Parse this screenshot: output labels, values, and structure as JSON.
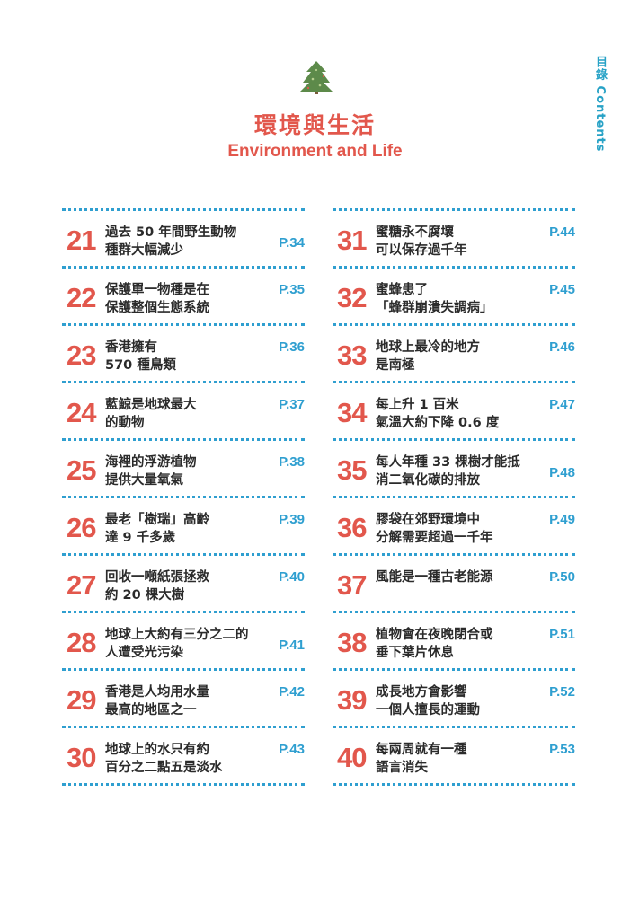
{
  "side_tab": "目錄 Contents",
  "icon": "pine-tree-icon",
  "title_zh": "環境與生活",
  "title_en": "Environment and Life",
  "colors": {
    "accent_red": "#e2574c",
    "accent_blue": "#2f9fd0",
    "tree_green": "#5d8a4a"
  },
  "left": [
    {
      "num": "21",
      "lines": [
        "過去 50 年間野生動物",
        "種群大幅減少"
      ],
      "page": "P.34"
    },
    {
      "num": "22",
      "lines": [
        "保護單一物種是在",
        "保護整個生態系統"
      ],
      "page": "P.35"
    },
    {
      "num": "23",
      "lines": [
        "香港擁有",
        "570 種鳥類"
      ],
      "page": "P.36"
    },
    {
      "num": "24",
      "lines": [
        "藍鯨是地球最大",
        "的動物"
      ],
      "page": "P.37"
    },
    {
      "num": "25",
      "lines": [
        "海裡的浮游植物",
        "提供大量氧氣"
      ],
      "page": "P.38"
    },
    {
      "num": "26",
      "lines": [
        "最老「樹瑞」高齡",
        "達 9 千多歲"
      ],
      "page": "P.39"
    },
    {
      "num": "27",
      "lines": [
        "回收一噸紙張拯救",
        "約 20 棵大樹"
      ],
      "page": "P.40"
    },
    {
      "num": "28",
      "lines": [
        "地球上大約有三分之二的",
        "人遭受光污染"
      ],
      "page": "P.41"
    },
    {
      "num": "29",
      "lines": [
        "香港是人均用水量",
        "最高的地區之一"
      ],
      "page": "P.42"
    },
    {
      "num": "30",
      "lines": [
        "地球上的水只有約",
        "百分之二點五是淡水"
      ],
      "page": "P.43"
    }
  ],
  "right": [
    {
      "num": "31",
      "lines": [
        "蜜糖永不腐壞",
        "可以保存過千年"
      ],
      "page": "P.44"
    },
    {
      "num": "32",
      "lines": [
        "蜜蜂患了",
        "「蜂群崩潰失調病」"
      ],
      "page": "P.45"
    },
    {
      "num": "33",
      "lines": [
        "地球上最冷的地方",
        "是南極"
      ],
      "page": "P.46"
    },
    {
      "num": "34",
      "lines": [
        "每上升 1 百米",
        "氣溫大約下降 0.6 度"
      ],
      "page": "P.47"
    },
    {
      "num": "35",
      "lines": [
        "每人年種 33 棵樹才能抵",
        "消二氧化碳的排放"
      ],
      "page": "P.48"
    },
    {
      "num": "36",
      "lines": [
        "膠袋在郊野環境中",
        "分解需要超過一千年"
      ],
      "page": "P.49"
    },
    {
      "num": "37",
      "lines": [
        "風能是一種古老能源"
      ],
      "page": "P.50"
    },
    {
      "num": "38",
      "lines": [
        "植物會在夜晚閉合或",
        "垂下葉片休息"
      ],
      "page": "P.51"
    },
    {
      "num": "39",
      "lines": [
        "成長地方會影響",
        "一個人擅長的運動"
      ],
      "page": "P.52"
    },
    {
      "num": "40",
      "lines": [
        "每兩周就有一種",
        "語言消失"
      ],
      "page": "P.53"
    }
  ]
}
